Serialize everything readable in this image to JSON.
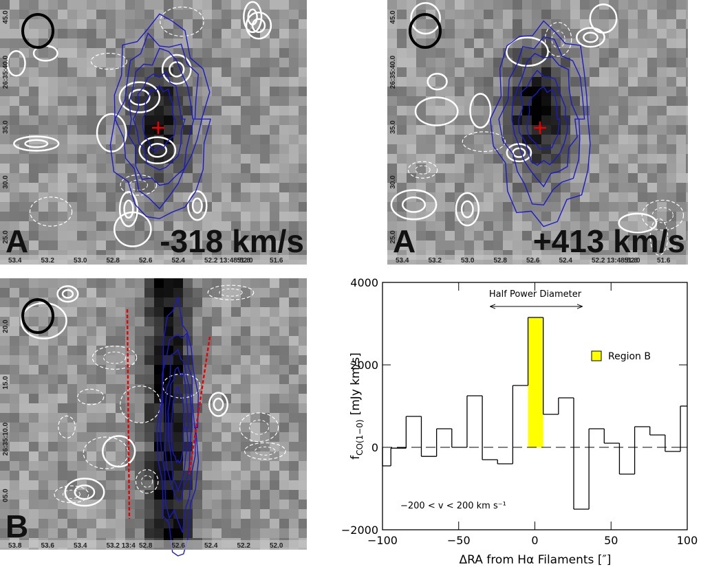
{
  "panels": [
    {
      "label": "A",
      "velocity": "-318 km/s",
      "xticks": [
        "53.4",
        "53.2",
        "53.0",
        "52.8",
        "52.6",
        "52.4",
        "52.2 13:48:52.0",
        "51.8",
        "51.6"
      ],
      "yticks": [
        "45.0",
        "26:35:40.0",
        "35.0",
        "30.0",
        "25.0"
      ]
    },
    {
      "label": "A",
      "velocity": "+413 km/s",
      "xticks": [
        "53.4",
        "53.2",
        "53.0",
        "52.8",
        "52.6",
        "52.4",
        "52.2 13:48:52.0",
        "51.8",
        "51.6"
      ],
      "yticks": [
        "45.0",
        "26:35:40.0",
        "35.0",
        "30.0",
        "25.0"
      ]
    },
    {
      "label": "B",
      "xticks": [
        "53.8",
        "53.6",
        "53.4",
        "53.2 13:4",
        "52.8",
        "52.6",
        "52.4",
        "52.2",
        "52.0"
      ],
      "yticks": [
        "20.0",
        "15.0",
        "26:35:10.0",
        "05.0"
      ]
    }
  ],
  "chart_data": {
    "type": "histogram",
    "xlabel": "ΔRA from Hα Filaments [″]",
    "ylabel": {
      "symbol": "f",
      "subscript": "CO(1−0)",
      "unit": "[mJy km/s]"
    },
    "annotations": [
      "Half Power Diameter",
      "−200 < v < 200 km s⁻¹"
    ],
    "bins": [
      -100,
      -94.5,
      -84.5,
      -74.5,
      -64.5,
      -54.5,
      -44.5,
      -34.5,
      -24.5,
      -14.5,
      -4.5,
      5.5,
      15.5,
      25.5,
      35.5,
      45.5,
      55.5,
      65.5,
      75.5,
      85.5,
      95.5,
      100
    ],
    "values": [
      -450,
      -20,
      750,
      -220,
      450,
      0,
      1250,
      -300,
      -400,
      1500,
      3150,
      800,
      1200,
      -1500,
      450,
      100,
      -650,
      500,
      300,
      -100,
      1000
    ],
    "color": "#000000",
    "highlight": {
      "index": 10,
      "name": "Region B",
      "color": "#ffff00"
    },
    "legend": "upper right",
    "xlim": [
      -100,
      100
    ],
    "ylim": [
      -2000,
      4000
    ],
    "xticks": [
      {
        "value": -100,
        "label": "−100"
      },
      {
        "value": -50,
        "label": "−50"
      },
      0,
      50,
      100
    ],
    "yticks": [
      {
        "value": -2000,
        "label": "−2000"
      },
      0,
      2000,
      4000
    ]
  }
}
